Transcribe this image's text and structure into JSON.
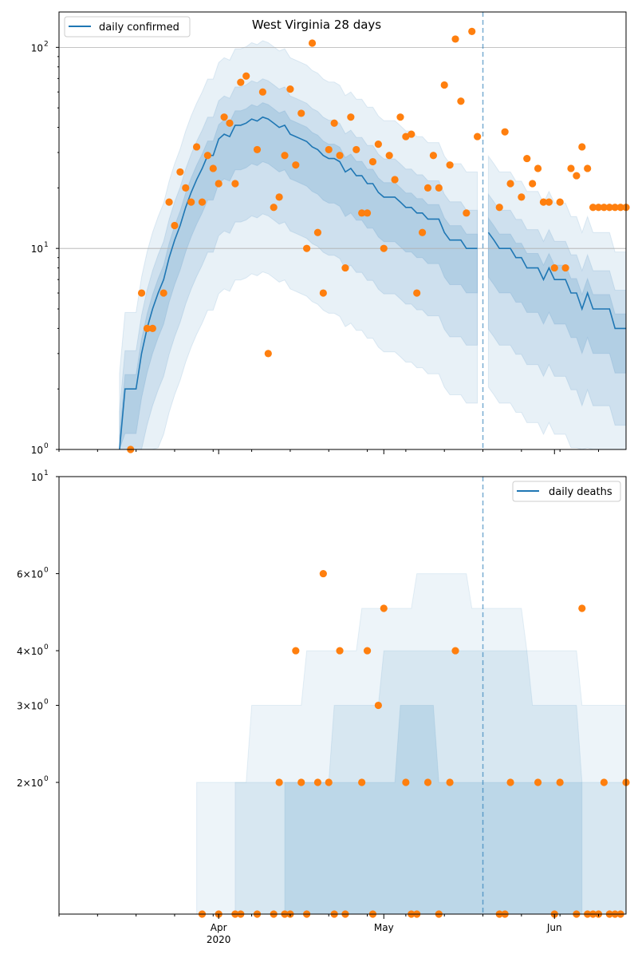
{
  "title": "West Virginia 28 days",
  "colors": {
    "band": "#1f77b4",
    "line": "#1f77b4",
    "observed": "#ff7f0e",
    "grid": "#b0b0b0",
    "divider": "#1f77b4"
  },
  "chart_data": [
    {
      "type": "line",
      "name": "confirmed",
      "scale": "log",
      "ylim": [
        1,
        150
      ],
      "ytick_labels": [
        {
          "value": 1,
          "base": "10",
          "exp": "0"
        },
        {
          "value": 10,
          "base": "10",
          "exp": "1"
        },
        {
          "value": 100,
          "base": "10",
          "exp": "2"
        }
      ],
      "grid_y": [
        10,
        100
      ],
      "legend": {
        "label": "daily confirmed",
        "position": "top-left"
      },
      "x_start": "2020-03-03",
      "x_end": "2020-06-14",
      "forecast_start": "2020-05-19",
      "median": {
        "x": [
          "2020-03-14",
          "2020-03-15",
          "2020-03-16",
          "2020-03-17",
          "2020-03-18",
          "2020-03-19",
          "2020-03-20",
          "2020-03-21",
          "2020-03-22",
          "2020-03-23",
          "2020-03-24",
          "2020-03-25",
          "2020-03-26",
          "2020-03-27",
          "2020-03-28",
          "2020-03-29",
          "2020-03-30",
          "2020-03-31",
          "2020-04-01",
          "2020-04-02",
          "2020-04-03",
          "2020-04-04",
          "2020-04-05",
          "2020-04-06",
          "2020-04-07",
          "2020-04-08",
          "2020-04-09",
          "2020-04-10",
          "2020-04-11",
          "2020-04-12",
          "2020-04-13",
          "2020-04-14",
          "2020-04-15",
          "2020-04-16",
          "2020-04-17",
          "2020-04-18",
          "2020-04-19",
          "2020-04-20",
          "2020-04-21",
          "2020-04-22",
          "2020-04-23",
          "2020-04-24",
          "2020-04-25",
          "2020-04-26",
          "2020-04-27",
          "2020-04-28",
          "2020-04-29",
          "2020-04-30",
          "2020-05-01",
          "2020-05-02",
          "2020-05-03",
          "2020-05-04",
          "2020-05-05",
          "2020-05-06",
          "2020-05-07",
          "2020-05-08",
          "2020-05-09",
          "2020-05-10",
          "2020-05-11",
          "2020-05-12",
          "2020-05-13",
          "2020-05-14",
          "2020-05-15",
          "2020-05-16",
          "2020-05-17",
          "2020-05-18"
        ],
        "y": [
          1,
          2,
          2,
          2,
          3,
          4,
          5,
          6,
          7,
          9,
          11,
          13,
          16,
          19,
          22,
          25,
          29,
          29,
          35,
          37,
          36,
          41,
          41,
          42,
          44,
          43,
          45,
          44,
          42,
          40,
          41,
          37,
          36,
          35,
          34,
          32,
          31,
          29,
          28,
          28,
          27,
          24,
          25,
          23,
          23,
          21,
          21,
          19,
          18,
          18,
          18,
          17,
          16,
          16,
          15,
          15,
          14,
          14,
          14,
          12,
          11,
          11,
          11,
          10,
          10,
          10
        ]
      },
      "forecast_median": {
        "x": [
          "2020-05-20",
          "2020-05-21",
          "2020-05-22",
          "2020-05-23",
          "2020-05-24",
          "2020-05-25",
          "2020-05-26",
          "2020-05-27",
          "2020-05-28",
          "2020-05-29",
          "2020-05-30",
          "2020-05-31",
          "2020-06-01",
          "2020-06-02",
          "2020-06-03",
          "2020-06-04",
          "2020-06-05",
          "2020-06-06",
          "2020-06-07",
          "2020-06-08",
          "2020-06-09",
          "2020-06-10",
          "2020-06-11",
          "2020-06-12",
          "2020-06-13",
          "2020-06-14"
        ],
        "y": [
          12,
          11,
          10,
          10,
          10,
          9,
          9,
          8,
          8,
          8,
          7,
          8,
          7,
          7,
          7,
          6,
          6,
          5,
          6,
          5,
          5,
          5,
          5,
          4,
          4,
          4
        ]
      },
      "observed": {
        "x": [
          "2020-03-16",
          "2020-03-18",
          "2020-03-19",
          "2020-03-20",
          "2020-03-22",
          "2020-03-23",
          "2020-03-24",
          "2020-03-25",
          "2020-03-26",
          "2020-03-27",
          "2020-03-28",
          "2020-03-29",
          "2020-03-30",
          "2020-03-31",
          "2020-04-01",
          "2020-04-02",
          "2020-04-03",
          "2020-04-04",
          "2020-04-05",
          "2020-04-06",
          "2020-04-08",
          "2020-04-09",
          "2020-04-10",
          "2020-04-11",
          "2020-04-12",
          "2020-04-13",
          "2020-04-14",
          "2020-04-15",
          "2020-04-16",
          "2020-04-17",
          "2020-04-18",
          "2020-04-19",
          "2020-04-20",
          "2020-04-21",
          "2020-04-22",
          "2020-04-23",
          "2020-04-24",
          "2020-04-25",
          "2020-04-26",
          "2020-04-27",
          "2020-04-28",
          "2020-04-29",
          "2020-04-30",
          "2020-05-01",
          "2020-05-02",
          "2020-05-03",
          "2020-05-04",
          "2020-05-05",
          "2020-05-06",
          "2020-05-07",
          "2020-05-08",
          "2020-05-09",
          "2020-05-10",
          "2020-05-11",
          "2020-05-12",
          "2020-05-13",
          "2020-05-14",
          "2020-05-15",
          "2020-05-16",
          "2020-05-17",
          "2020-05-18",
          "2020-05-22",
          "2020-05-23",
          "2020-05-24",
          "2020-05-26",
          "2020-05-27",
          "2020-05-28",
          "2020-05-29",
          "2020-05-30",
          "2020-05-31",
          "2020-06-01",
          "2020-06-02",
          "2020-06-03",
          "2020-06-04",
          "2020-06-05",
          "2020-06-06",
          "2020-06-07",
          "2020-06-08",
          "2020-06-09",
          "2020-06-10",
          "2020-06-11",
          "2020-06-12",
          "2020-06-13",
          "2020-06-14"
        ],
        "y": [
          1,
          6,
          4,
          4,
          6,
          17,
          13,
          24,
          20,
          17,
          32,
          17,
          29,
          25,
          21,
          45,
          42,
          21,
          67,
          72,
          31,
          60,
          3,
          16,
          18,
          29,
          62,
          26,
          47,
          10,
          105,
          12,
          6,
          31,
          42,
          29,
          8,
          45,
          31,
          15,
          15,
          27,
          33,
          10,
          29,
          22,
          45,
          36,
          37,
          6,
          12,
          20,
          29,
          20,
          65,
          26,
          110,
          54,
          15,
          120,
          36,
          16,
          38,
          21,
          18,
          28,
          21,
          25,
          17,
          17,
          8,
          17,
          8,
          25,
          23,
          32,
          25,
          16,
          16,
          16,
          16,
          16,
          16,
          16
        ]
      }
    },
    {
      "type": "line",
      "name": "deaths",
      "scale": "log",
      "ylim": [
        1,
        10
      ],
      "ytick_labels": [
        {
          "value": 2,
          "base": "2×10",
          "exp": "0"
        },
        {
          "value": 3,
          "base": "3×10",
          "exp": "0"
        },
        {
          "value": 4,
          "base": "4×10",
          "exp": "0"
        },
        {
          "value": 6,
          "base": "6×10",
          "exp": "0"
        },
        {
          "value": 10,
          "base": "10",
          "exp": "1"
        }
      ],
      "legend": {
        "label": "daily deaths",
        "position": "top-right"
      },
      "x_ticks": [
        {
          "date": "2020-04-01",
          "label": "Apr",
          "sublabel": "2020"
        },
        {
          "date": "2020-05-01",
          "label": "May",
          "sublabel": ""
        },
        {
          "date": "2020-06-01",
          "label": "Jun",
          "sublabel": ""
        }
      ],
      "observed": {
        "x": [
          "2020-03-29",
          "2020-04-01",
          "2020-04-04",
          "2020-04-05",
          "2020-04-08",
          "2020-04-11",
          "2020-04-12",
          "2020-04-13",
          "2020-04-14",
          "2020-04-15",
          "2020-04-16",
          "2020-04-17",
          "2020-04-19",
          "2020-04-20",
          "2020-04-21",
          "2020-04-22",
          "2020-04-23",
          "2020-04-24",
          "2020-04-27",
          "2020-04-28",
          "2020-04-29",
          "2020-04-30",
          "2020-05-01",
          "2020-05-05",
          "2020-05-06",
          "2020-05-07",
          "2020-05-09",
          "2020-05-11",
          "2020-05-13",
          "2020-05-14",
          "2020-05-22",
          "2020-05-23",
          "2020-05-24",
          "2020-05-29",
          "2020-06-01",
          "2020-06-02",
          "2020-06-05",
          "2020-06-06",
          "2020-06-07",
          "2020-06-08",
          "2020-06-09",
          "2020-06-10",
          "2020-06-11",
          "2020-06-12",
          "2020-06-13",
          "2020-06-14"
        ],
        "y": [
          1,
          1,
          1,
          1,
          1,
          1,
          2,
          1,
          1,
          4,
          2,
          1,
          2,
          6,
          2,
          1,
          4,
          1,
          2,
          4,
          1,
          3,
          5,
          2,
          1,
          1,
          2,
          1,
          2,
          4,
          1,
          1,
          2,
          2,
          1,
          2,
          1,
          5,
          1,
          1,
          1,
          2,
          1,
          1,
          1,
          2
        ]
      }
    }
  ]
}
